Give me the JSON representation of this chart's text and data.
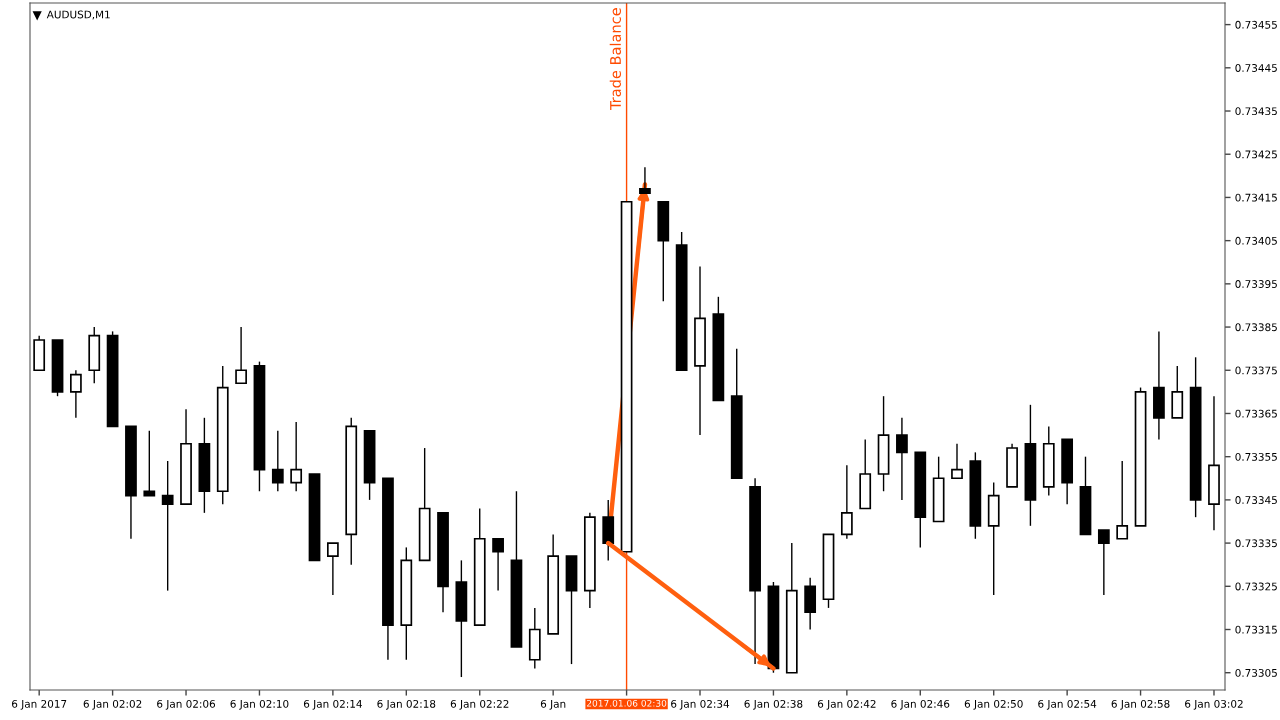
{
  "chart_data": {
    "type": "candlestick",
    "title": "AUDUSD,M1",
    "categories": [
      "6 Jan 2017",
      null,
      null,
      null,
      "6 Jan 02:02",
      null,
      null,
      null,
      "6 Jan 02:06",
      null,
      null,
      null,
      "6 Jan 02:10",
      null,
      null,
      null,
      "6 Jan 02:14",
      null,
      null,
      null,
      "6 Jan 02:18",
      null,
      null,
      null,
      "6 Jan 02:22",
      null,
      null,
      null,
      "6 Jan",
      null,
      null,
      null,
      "2017.01.06 02:30",
      null,
      null,
      null,
      "6 Jan 02:34",
      null,
      null,
      null,
      "6 Jan 02:38",
      null,
      null,
      null,
      "6 Jan 02:42",
      null,
      null,
      null,
      "6 Jan 02:46",
      null,
      null,
      null,
      "6 Jan 02:50",
      null,
      null,
      null,
      "6 Jan 02:54",
      null,
      null,
      null,
      "6 Jan 02:58",
      null,
      null,
      null,
      "6 Jan 03:02"
    ],
    "ohlc": [
      [
        0.73375,
        0.73383,
        0.73375,
        0.73382
      ],
      [
        0.73382,
        0.73382,
        0.73369,
        0.7337
      ],
      [
        0.7337,
        0.73375,
        0.73364,
        0.73374
      ],
      [
        0.73375,
        0.73385,
        0.73372,
        0.73383
      ],
      [
        0.73383,
        0.73384,
        0.73362,
        0.73362
      ],
      [
        0.73362,
        0.73362,
        0.73336,
        0.73346
      ],
      [
        0.73347,
        0.73361,
        0.73346,
        0.73346
      ],
      [
        0.73346,
        0.73354,
        0.73324,
        0.73344
      ],
      [
        0.73344,
        0.73366,
        0.73344,
        0.73358
      ],
      [
        0.73358,
        0.73364,
        0.73342,
        0.73347
      ],
      [
        0.73347,
        0.73376,
        0.73344,
        0.73371
      ],
      [
        0.73372,
        0.73385,
        0.73372,
        0.73375
      ],
      [
        0.73376,
        0.73377,
        0.73347,
        0.73352
      ],
      [
        0.73352,
        0.73361,
        0.73347,
        0.73349
      ],
      [
        0.73349,
        0.73363,
        0.73347,
        0.73352
      ],
      [
        0.73351,
        0.73351,
        0.73331,
        0.73331
      ],
      [
        0.73332,
        0.73335,
        0.73323,
        0.73335
      ],
      [
        0.73337,
        0.73364,
        0.7333,
        0.73362
      ],
      [
        0.73361,
        0.73361,
        0.73345,
        0.73349
      ],
      [
        0.7335,
        0.7335,
        0.73308,
        0.73316
      ],
      [
        0.73316,
        0.73334,
        0.73308,
        0.73331
      ],
      [
        0.73331,
        0.73357,
        0.73331,
        0.73343
      ],
      [
        0.73342,
        0.73342,
        0.73319,
        0.73325
      ],
      [
        0.73326,
        0.73331,
        0.73304,
        0.73317
      ],
      [
        0.73316,
        0.73343,
        0.73316,
        0.73336
      ],
      [
        0.73336,
        0.73336,
        0.73324,
        0.73333
      ],
      [
        0.73331,
        0.73347,
        0.73311,
        0.73311
      ],
      [
        0.73308,
        0.7332,
        0.73306,
        0.73315
      ],
      [
        0.73314,
        0.73337,
        0.73314,
        0.73332
      ],
      [
        0.73332,
        0.73332,
        0.73307,
        0.73324
      ],
      [
        0.73324,
        0.73342,
        0.7332,
        0.73341
      ],
      [
        0.73341,
        0.73345,
        0.73331,
        0.73335
      ],
      [
        0.73333,
        0.73414,
        0.73333,
        0.73414
      ],
      [
        0.73417,
        0.73422,
        0.73416,
        0.73416
      ],
      [
        0.73414,
        0.73414,
        0.73391,
        0.73405
      ],
      [
        0.73404,
        0.73407,
        0.73375,
        0.73375
      ],
      [
        0.73376,
        0.73399,
        0.7336,
        0.73387
      ],
      [
        0.73388,
        0.73392,
        0.73368,
        0.73368
      ],
      [
        0.73369,
        0.7338,
        0.7335,
        0.7335
      ],
      [
        0.73348,
        0.7335,
        0.73307,
        0.73324
      ],
      [
        0.73325,
        0.73326,
        0.73305,
        0.73306
      ],
      [
        0.73305,
        0.73335,
        0.73305,
        0.73324
      ],
      [
        0.73325,
        0.73327,
        0.73315,
        0.73319
      ],
      [
        0.73322,
        0.73337,
        0.7332,
        0.73337
      ],
      [
        0.73337,
        0.73353,
        0.73336,
        0.73342
      ],
      [
        0.73343,
        0.73359,
        0.73343,
        0.73351
      ],
      [
        0.73351,
        0.73369,
        0.73347,
        0.7336
      ],
      [
        0.7336,
        0.73364,
        0.73345,
        0.73356
      ],
      [
        0.73356,
        0.73356,
        0.73334,
        0.73341
      ],
      [
        0.7334,
        0.73355,
        0.7334,
        0.7335
      ],
      [
        0.7335,
        0.73358,
        0.7335,
        0.73352
      ],
      [
        0.73354,
        0.73356,
        0.73336,
        0.73339
      ],
      [
        0.73339,
        0.73349,
        0.73323,
        0.73346
      ],
      [
        0.73348,
        0.73358,
        0.73348,
        0.73357
      ],
      [
        0.73358,
        0.73367,
        0.73339,
        0.73345
      ],
      [
        0.73348,
        0.73362,
        0.73346,
        0.73358
      ],
      [
        0.73359,
        0.73359,
        0.73344,
        0.73349
      ],
      [
        0.73348,
        0.73355,
        0.73337,
        0.73337
      ],
      [
        0.73338,
        0.73338,
        0.73323,
        0.73335
      ],
      [
        0.73336,
        0.73354,
        0.73336,
        0.73339
      ],
      [
        0.73339,
        0.73371,
        0.73339,
        0.7337
      ],
      [
        0.73371,
        0.73384,
        0.73359,
        0.73364
      ],
      [
        0.73364,
        0.73376,
        0.73364,
        0.7337
      ],
      [
        0.73371,
        0.73378,
        0.73341,
        0.73345
      ],
      [
        0.73344,
        0.73369,
        0.73338,
        0.73353
      ]
    ],
    "series": [
      {
        "type": "line",
        "color": "#ff5f0f",
        "values": [
          null,
          null,
          null,
          null,
          null,
          null,
          null,
          null,
          null,
          null,
          null,
          null,
          null,
          null,
          null,
          null,
          null,
          null,
          null,
          null,
          null,
          null,
          null,
          null,
          null,
          null,
          null,
          null,
          null,
          null,
          null,
          0.73335,
          null,
          0.73418,
          null,
          null,
          null,
          null,
          null,
          null,
          null,
          null,
          null,
          null,
          null,
          null,
          null,
          null,
          null,
          null,
          null,
          null,
          null,
          null,
          null,
          null,
          null,
          null,
          null,
          null,
          null,
          null,
          null,
          null,
          null
        ]
      },
      {
        "type": "line",
        "color": "#ff5f0f",
        "values": [
          null,
          null,
          null,
          null,
          null,
          null,
          null,
          null,
          null,
          null,
          null,
          null,
          null,
          null,
          null,
          null,
          null,
          null,
          null,
          null,
          null,
          null,
          null,
          null,
          null,
          null,
          null,
          null,
          null,
          null,
          null,
          0.73335,
          null,
          null,
          null,
          null,
          null,
          null,
          null,
          null,
          0.73306,
          null,
          null,
          null,
          null,
          null,
          null,
          null,
          null,
          null,
          null,
          null,
          null,
          null,
          null,
          null,
          null,
          null,
          null,
          null,
          null,
          null,
          null,
          null,
          null
        ]
      }
    ],
    "ylim": [
      0.73301,
      0.7346
    ],
    "yticks": [
      {
        "value": 0.73305,
        "label": "0.73305"
      },
      {
        "value": 0.73315,
        "label": "0.73315"
      },
      {
        "value": 0.73325,
        "label": "0.73325"
      },
      {
        "value": 0.73335,
        "label": "0.73335"
      },
      {
        "value": 0.73345,
        "label": "0.73345"
      },
      {
        "value": 0.73355,
        "label": "0.73355"
      },
      {
        "value": 0.73365,
        "label": "0.73365"
      },
      {
        "value": 0.73375,
        "label": "0.73375"
      },
      {
        "value": 0.73385,
        "label": "0.73385"
      },
      {
        "value": 0.73395,
        "label": "0.73395"
      },
      {
        "value": 0.73405,
        "label": "0.73405"
      },
      {
        "value": 0.73415,
        "label": "0.73415"
      },
      {
        "value": 0.73425,
        "label": "0.73425"
      },
      {
        "value": 0.73435,
        "label": "0.73435"
      },
      {
        "value": 0.73445,
        "label": "0.73445"
      },
      {
        "value": 0.73455,
        "label": "0.73455"
      }
    ],
    "ref_lines": [
      {
        "axis": "x",
        "value": "2017.01.06 02:30",
        "label": "Trade Balance",
        "color": "#ff4a00"
      }
    ],
    "grid": false,
    "legend": false
  }
}
